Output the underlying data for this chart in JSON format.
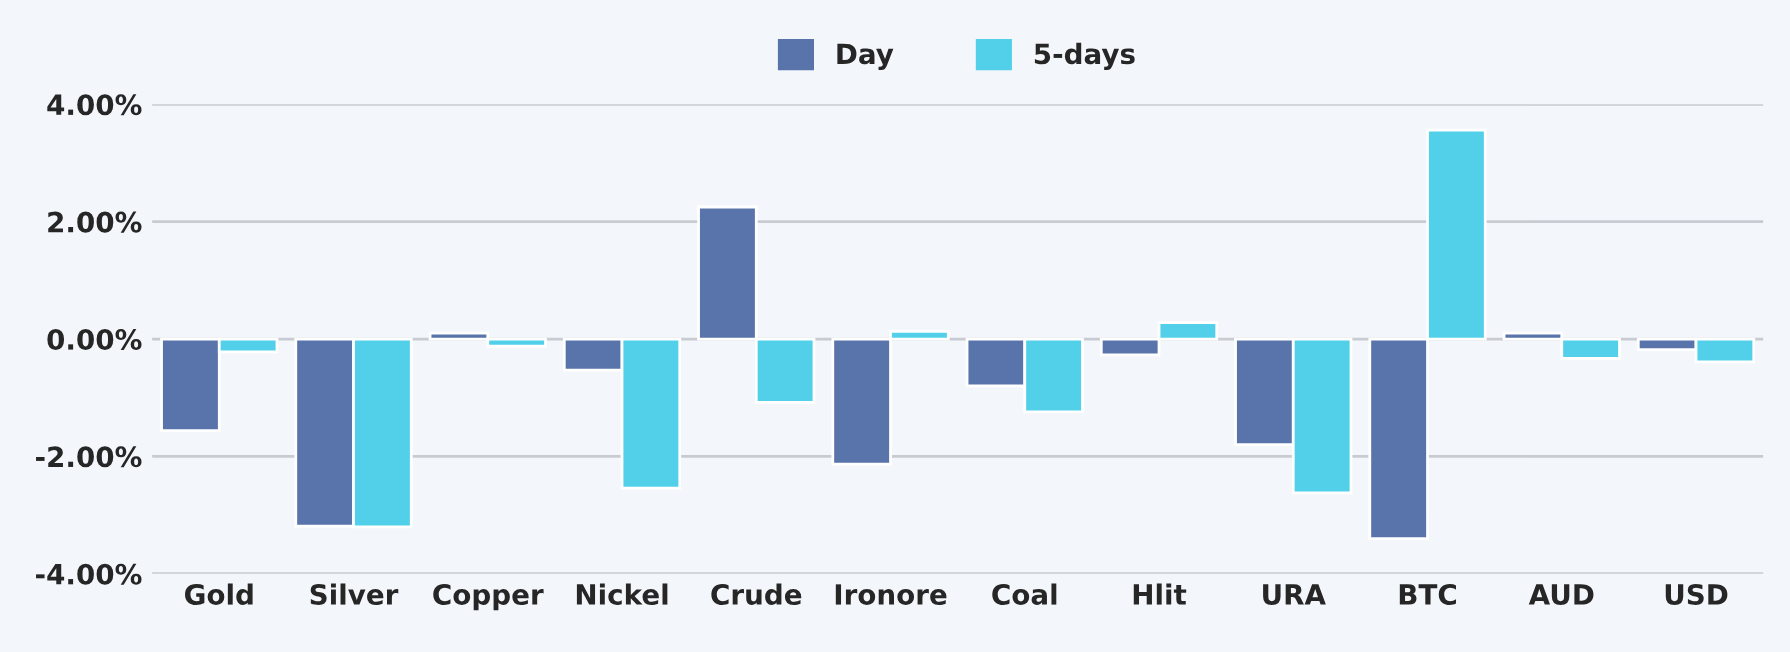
{
  "chart_data": {
    "type": "bar",
    "categories": [
      "Gold",
      "Silver",
      "Copper",
      "Nickel",
      "Crude",
      "Ironore",
      "Coal",
      "Hlit",
      "URA",
      "BTC",
      "AUD",
      "USD"
    ],
    "series": [
      {
        "name": "Day",
        "color": "#5874ab",
        "values": [
          -1.56,
          -3.19,
          0.1,
          -0.53,
          2.25,
          -2.13,
          -0.8,
          -0.27,
          -1.8,
          -3.4,
          0.1,
          -0.18
        ]
      },
      {
        "name": "5-days",
        "color": "#52d0ea",
        "values": [
          -0.22,
          -3.2,
          -0.12,
          -2.54,
          -1.08,
          0.13,
          -1.24,
          0.28,
          -2.62,
          3.56,
          -0.33,
          -0.39
        ]
      }
    ],
    "ylim": [
      -4,
      4
    ],
    "yticks": [
      {
        "value": -4,
        "label": "-4.00%"
      },
      {
        "value": -2,
        "label": "-2.00%"
      },
      {
        "value": 0,
        "label": "0.00%"
      },
      {
        "value": 2,
        "label": "2.00%"
      },
      {
        "value": 4,
        "label": "4.00%"
      }
    ],
    "grid": "y",
    "legend": "top"
  }
}
